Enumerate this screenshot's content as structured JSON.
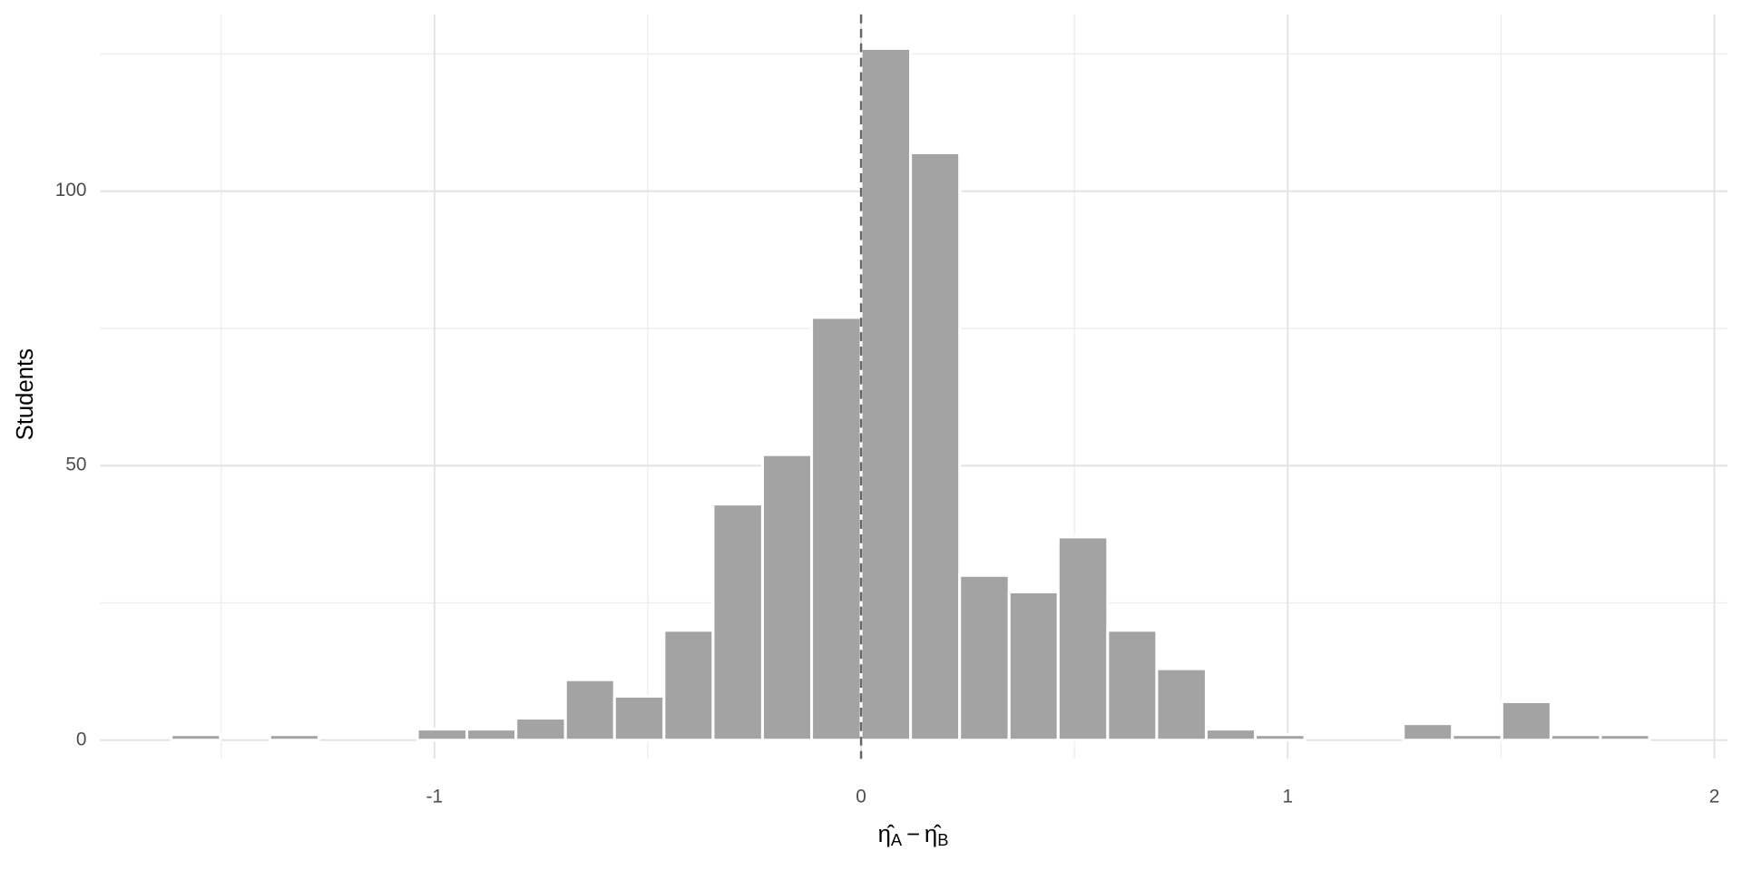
{
  "chart_data": {
    "type": "histogram",
    "bins": [
      -1.617,
      -1.502,
      -1.386,
      -1.271,
      -1.155,
      -1.04,
      -0.924,
      -0.809,
      -0.693,
      -0.578,
      -0.462,
      -0.347,
      -0.231,
      -0.116,
      0,
      0.116,
      0.231,
      0.347,
      0.462,
      0.578,
      0.693,
      0.809,
      0.924,
      1.04,
      1.155,
      1.271,
      1.386,
      1.502,
      1.617,
      1.733,
      1.848
    ],
    "values": [
      1,
      0,
      1,
      0,
      0,
      2,
      2,
      4,
      11,
      8,
      20,
      43,
      52,
      77,
      126,
      107,
      30,
      27,
      37,
      20,
      13,
      2,
      1,
      0,
      0,
      3,
      1,
      7,
      1,
      1
    ],
    "color": "#a3a3a3",
    "xlim": [
      -1.784,
      2.031
    ],
    "ylim": [
      -3.4,
      132.2
    ],
    "xticks": [
      -1,
      0,
      1,
      2
    ],
    "yticks": [
      0,
      50,
      100
    ],
    "x_minor_grid": [
      -1.5,
      -0.5,
      0.5,
      1.5
    ],
    "y_minor_grid": [
      25,
      75,
      125
    ],
    "grid": true,
    "vline": 0,
    "ylabel": "Students",
    "xlabel": [
      "η̂",
      "A",
      "−",
      "η̂",
      "B"
    ]
  }
}
